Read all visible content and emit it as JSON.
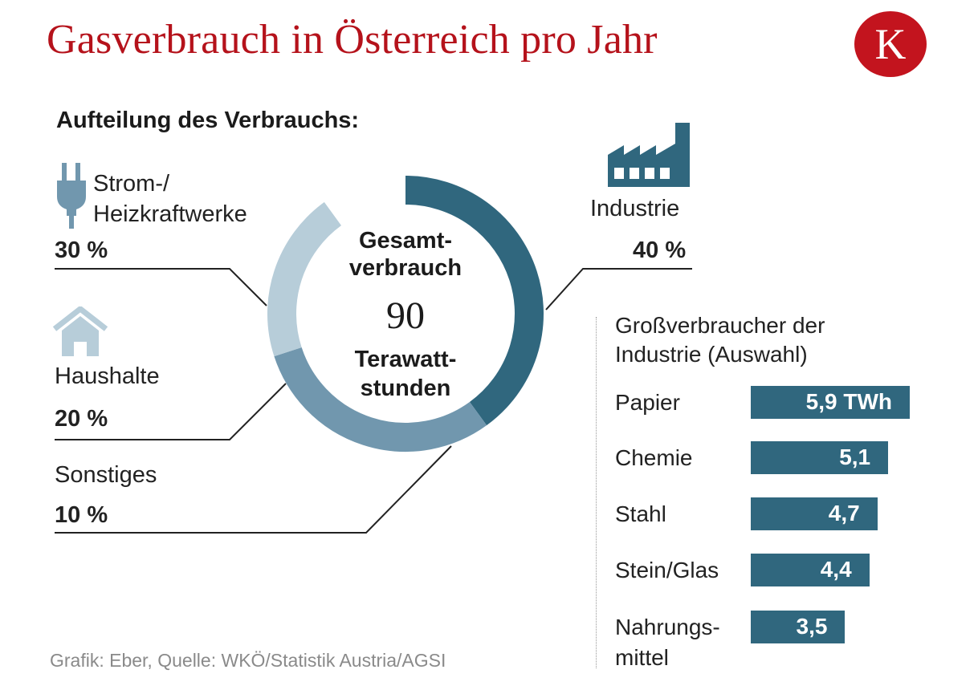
{
  "header": {
    "title": "Gasverbrauch in Österreich pro Jahr",
    "logo_letter": "K"
  },
  "subtitle": "Aufteilung des Verbrauchs:",
  "donut_center": {
    "line1": "Gesamt-",
    "line2": "verbrauch",
    "value": "90",
    "unit1": "Terawatt-",
    "unit2": "stunden"
  },
  "segments": {
    "strom": {
      "label1": "Strom-/",
      "label2": "Heizkraftwerke",
      "percent": "30 %",
      "icon": "power-plug-icon"
    },
    "haushalte": {
      "label": "Haushalte",
      "percent": "20 %",
      "icon": "house-icon"
    },
    "sonstiges": {
      "label": "Sonstiges",
      "percent": "10 %"
    },
    "industrie": {
      "label": "Industrie",
      "percent": "40 %",
      "icon": "factory-icon"
    }
  },
  "industry": {
    "title1": "Großverbraucher der",
    "title2": "Industrie (Auswahl)",
    "rows": [
      {
        "name": "Papier",
        "value_label": "5,9 TWh"
      },
      {
        "name": "Chemie",
        "value_label": "5,1"
      },
      {
        "name": "Stahl",
        "value_label": "4,7"
      },
      {
        "name": "Stein/Glas",
        "value_label": "4,4"
      },
      {
        "name": "Nahrungs-",
        "name2": "mittel",
        "value_label": "3,5"
      }
    ]
  },
  "source": "Grafik: Eber, Quelle: WKÖ/Statistik Austria/AGSI",
  "colors": {
    "title": "#b5121b",
    "industrie": "#30677e",
    "strom": "#7197ae",
    "haushalte": "#b7cdd9",
    "sonstiges": "#ffffff"
  },
  "chart_data": [
    {
      "type": "pie",
      "title": "Aufteilung des Verbrauchs:",
      "categories": [
        "Industrie",
        "Strom-/Heizkraftwerke",
        "Haushalte",
        "Sonstiges"
      ],
      "values": [
        40,
        30,
        20,
        10
      ],
      "total_value": 90,
      "total_unit": "Terawattstunden"
    },
    {
      "type": "bar",
      "title": "Großverbraucher der Industrie (Auswahl)",
      "categories": [
        "Papier",
        "Chemie",
        "Stahl",
        "Stein/Glas",
        "Nahrungsmittel"
      ],
      "values": [
        5.9,
        5.1,
        4.7,
        4.4,
        3.5
      ],
      "unit": "TWh"
    }
  ]
}
